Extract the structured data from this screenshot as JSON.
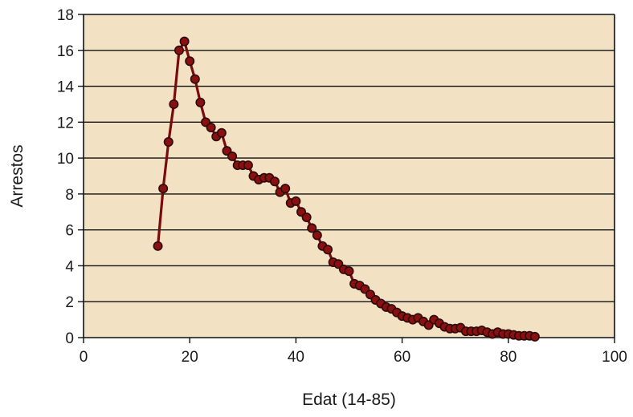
{
  "chart_data": {
    "type": "line",
    "title": "",
    "xlabel": "Edat (14-85)",
    "ylabel": "Arrestos",
    "xlim": [
      0,
      100
    ],
    "ylim": [
      0,
      18
    ],
    "xticks": [
      0,
      20,
      40,
      60,
      80,
      100
    ],
    "yticks": [
      0,
      2,
      4,
      6,
      8,
      10,
      12,
      14,
      16,
      18
    ],
    "grid": "horizontal",
    "legend": "none",
    "colors": {
      "plot_background": "#f3e1c3",
      "line": "#7a0b0b",
      "marker_fill": "#8b0f0f",
      "marker_edge": "#2a0a0a",
      "grid": "#111111"
    },
    "series": [
      {
        "x": [
          14,
          15,
          16,
          17,
          18,
          19,
          20,
          21,
          22,
          23,
          24,
          25,
          26,
          27,
          28,
          29,
          30,
          31,
          32,
          33,
          34,
          35,
          36,
          37,
          38,
          39,
          40,
          41,
          42,
          43,
          44,
          45,
          46,
          47,
          48,
          49,
          50,
          51,
          52,
          53,
          54,
          55,
          56,
          57,
          58,
          59,
          60,
          61,
          62,
          63,
          64,
          65,
          66,
          67,
          68,
          69,
          70,
          71,
          72,
          73,
          74,
          75,
          76,
          77,
          78,
          79,
          80,
          81,
          82,
          83,
          84,
          85
        ],
        "values": [
          5.1,
          8.3,
          10.9,
          13.0,
          16.0,
          16.5,
          15.4,
          14.4,
          13.1,
          12.0,
          11.7,
          11.2,
          11.4,
          10.4,
          10.1,
          9.6,
          9.6,
          9.6,
          9.0,
          8.8,
          8.9,
          8.9,
          8.7,
          8.1,
          8.3,
          7.5,
          7.6,
          7.0,
          6.7,
          6.1,
          5.7,
          5.1,
          4.9,
          4.2,
          4.1,
          3.8,
          3.7,
          3.0,
          2.9,
          2.7,
          2.4,
          2.1,
          1.9,
          1.7,
          1.6,
          1.4,
          1.2,
          1.1,
          1.0,
          1.1,
          0.9,
          0.7,
          1.0,
          0.8,
          0.6,
          0.5,
          0.5,
          0.55,
          0.35,
          0.35,
          0.35,
          0.4,
          0.3,
          0.2,
          0.3,
          0.2,
          0.2,
          0.15,
          0.1,
          0.1,
          0.1,
          0.05
        ]
      }
    ]
  }
}
